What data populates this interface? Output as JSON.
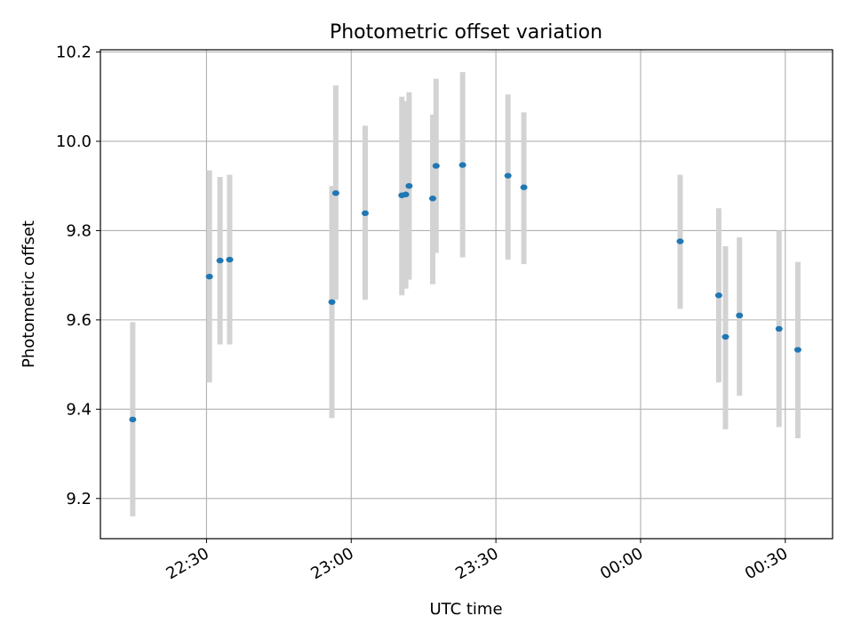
{
  "chart_data": {
    "type": "scatter",
    "title": "Photometric offset variation",
    "xlabel": "UTC time",
    "ylabel": "Photometric offset",
    "x_tick_labels": [
      "22:30",
      "23:00",
      "23:30",
      "00:00",
      "00:30"
    ],
    "y_tick_labels": [
      "9.2",
      "9.4",
      "9.6",
      "9.8",
      "10.0",
      "10.2"
    ],
    "x_ticks_min": [
      0,
      30,
      60,
      90,
      120
    ],
    "y_ticks": [
      9.2,
      9.4,
      9.6,
      9.8,
      10.0,
      10.2
    ],
    "xlim_min": [
      -22.0,
      129.8
    ],
    "ylim": [
      9.11,
      10.205
    ],
    "grid": true,
    "x_unit_note": "minutes after 22:30 UTC",
    "points": [
      {
        "x": -15.3,
        "y": 9.377,
        "err_low": 9.16,
        "err_high": 9.595
      },
      {
        "x": 0.6,
        "y": 9.697,
        "err_low": 9.46,
        "err_high": 9.935
      },
      {
        "x": 2.8,
        "y": 9.733,
        "err_low": 9.545,
        "err_high": 9.92
      },
      {
        "x": 4.8,
        "y": 9.735,
        "err_low": 9.545,
        "err_high": 9.925
      },
      {
        "x": 26.0,
        "y": 9.64,
        "err_low": 9.38,
        "err_high": 9.9
      },
      {
        "x": 26.8,
        "y": 9.884,
        "err_low": 9.645,
        "err_high": 10.125
      },
      {
        "x": 32.9,
        "y": 9.839,
        "err_low": 9.645,
        "err_high": 10.035
      },
      {
        "x": 40.5,
        "y": 9.879,
        "err_low": 9.655,
        "err_high": 10.1
      },
      {
        "x": 41.3,
        "y": 9.881,
        "err_low": 9.67,
        "err_high": 10.09
      },
      {
        "x": 42.0,
        "y": 9.9,
        "err_low": 9.69,
        "err_high": 10.11
      },
      {
        "x": 46.9,
        "y": 9.872,
        "err_low": 9.68,
        "err_high": 10.06
      },
      {
        "x": 47.6,
        "y": 9.945,
        "err_low": 9.75,
        "err_high": 10.14
      },
      {
        "x": 53.1,
        "y": 9.947,
        "err_low": 9.74,
        "err_high": 10.155
      },
      {
        "x": 62.5,
        "y": 9.923,
        "err_low": 9.735,
        "err_high": 10.105
      },
      {
        "x": 65.8,
        "y": 9.897,
        "err_low": 9.725,
        "err_high": 10.065
      },
      {
        "x": 98.2,
        "y": 9.776,
        "err_low": 9.625,
        "err_high": 9.925
      },
      {
        "x": 106.2,
        "y": 9.655,
        "err_low": 9.46,
        "err_high": 9.85
      },
      {
        "x": 107.6,
        "y": 9.562,
        "err_low": 9.355,
        "err_high": 9.765
      },
      {
        "x": 110.5,
        "y": 9.61,
        "err_low": 9.43,
        "err_high": 9.785
      },
      {
        "x": 118.7,
        "y": 9.58,
        "err_low": 9.36,
        "err_high": 9.8
      },
      {
        "x": 122.6,
        "y": 9.533,
        "err_low": 9.335,
        "err_high": 9.73
      }
    ],
    "colors": {
      "marker": "#1f77b4",
      "errorbar": "#d3d3d3",
      "grid": "#b0b0b0",
      "axes": "#000000"
    }
  }
}
